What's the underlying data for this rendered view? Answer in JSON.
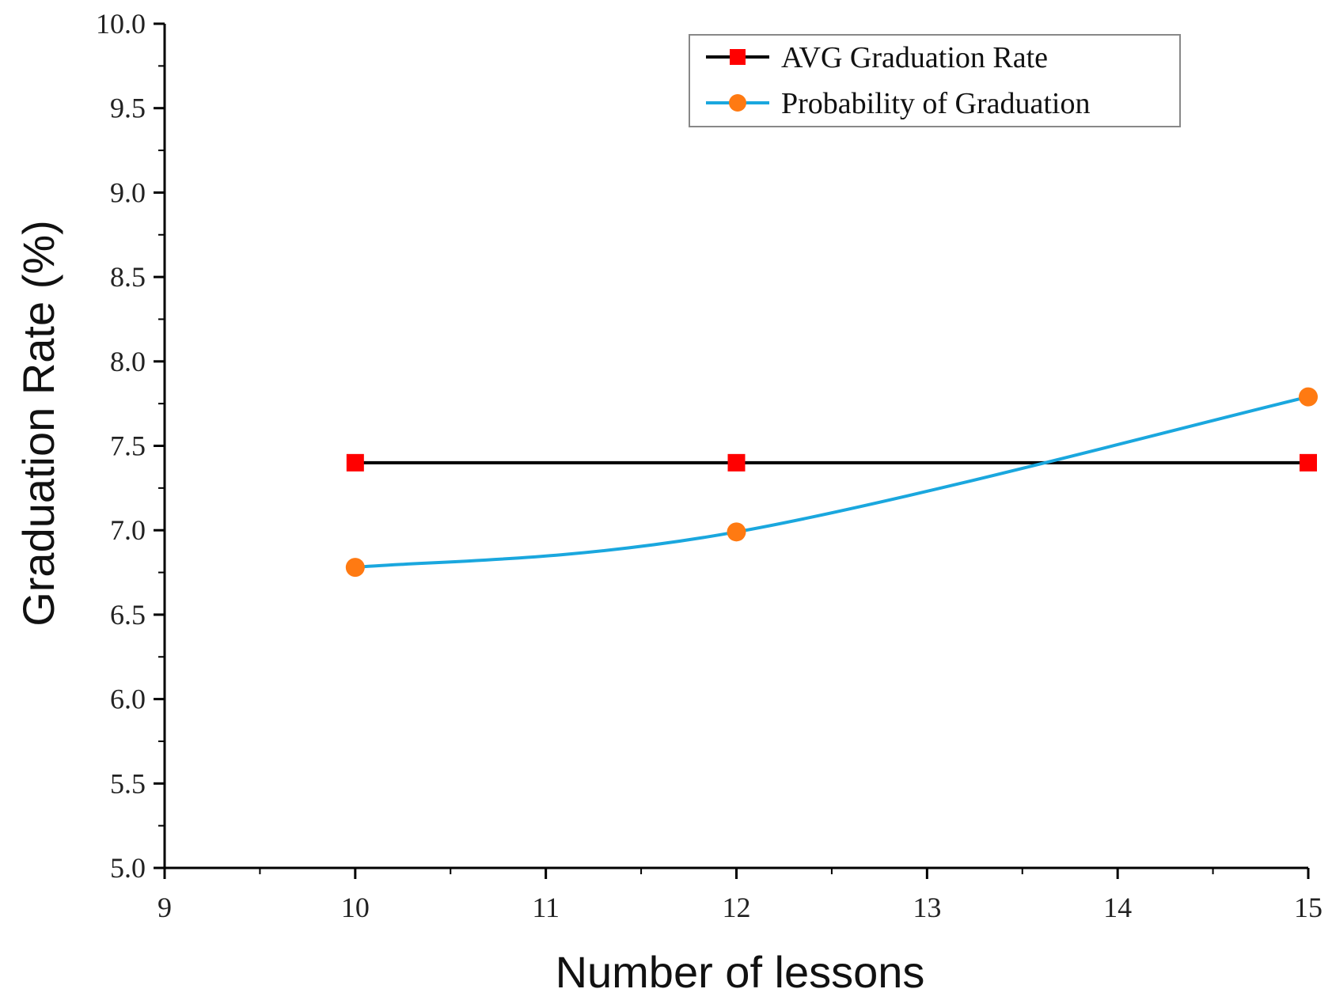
{
  "chart_data": {
    "type": "line",
    "title": "",
    "xlabel": "Number of lessons",
    "ylabel": "Graduation Rate (%)",
    "xlim": [
      9,
      15
    ],
    "ylim": [
      5.0,
      10.0
    ],
    "xticks": [
      "9",
      "10",
      "11",
      "12",
      "13",
      "14",
      "15"
    ],
    "yticks": [
      "5.0",
      "5.5",
      "6.0",
      "6.5",
      "7.0",
      "7.5",
      "8.0",
      "8.5",
      "9.0",
      "9.5",
      "10.0"
    ],
    "grid": false,
    "legend_position": "top-right",
    "series": [
      {
        "name": "AVG Graduation Rate",
        "x": [
          10,
          12,
          15
        ],
        "values": [
          7.4,
          7.4,
          7.4
        ],
        "line_color": "#000000",
        "marker": "square",
        "marker_color": "#ff0000"
      },
      {
        "name": "Probability of Graduation",
        "x": [
          10,
          12,
          15
        ],
        "values": [
          6.78,
          6.99,
          7.79
        ],
        "line_color": "#1aa7de",
        "marker": "circle",
        "marker_color": "#ff7a12"
      }
    ]
  }
}
